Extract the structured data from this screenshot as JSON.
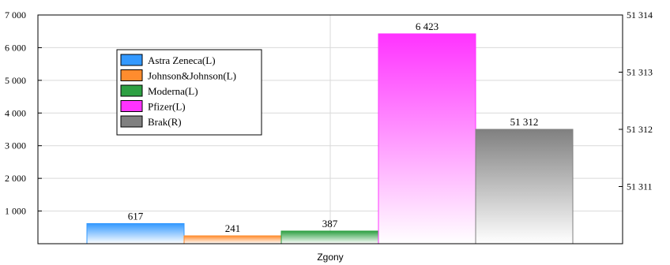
{
  "chart_data": {
    "type": "bar",
    "xlabel": "Zgony",
    "categories": [
      "Zgony"
    ],
    "series": [
      {
        "name": "Astra Zeneca(L)",
        "values": [
          617
        ],
        "value_label": "617",
        "axis": "left",
        "color": "#3399ff"
      },
      {
        "name": "Johnson&Johnson(L)",
        "values": [
          241
        ],
        "value_label": "241",
        "axis": "left",
        "color": "#ff8c2e"
      },
      {
        "name": "Moderna(L)",
        "values": [
          387
        ],
        "value_label": "387",
        "axis": "left",
        "color": "#2ea043"
      },
      {
        "name": "Pfizer(L)",
        "values": [
          6423
        ],
        "value_label": "6 423",
        "axis": "left",
        "color": "#ff33ff"
      },
      {
        "name": "Brak(R)",
        "values": [
          51312
        ],
        "value_label": "51 312",
        "axis": "right",
        "color": "#808080"
      }
    ],
    "y_left": {
      "ylim": [
        0,
        7000
      ],
      "ticks": [
        1000,
        2000,
        3000,
        4000,
        5000,
        6000,
        7000
      ],
      "tick_labels": [
        "1 000",
        "2 000",
        "3 000",
        "4 000",
        "5 000",
        "6 000",
        "7 000"
      ]
    },
    "y_right": {
      "ylim": [
        51310.0,
        51314.0
      ],
      "ticks": [
        51311,
        51312,
        51313,
        51314
      ],
      "tick_labels": [
        "51 311",
        "51 312",
        "51 313",
        "51 314"
      ]
    },
    "grid": true,
    "legend_position": "top-left"
  }
}
